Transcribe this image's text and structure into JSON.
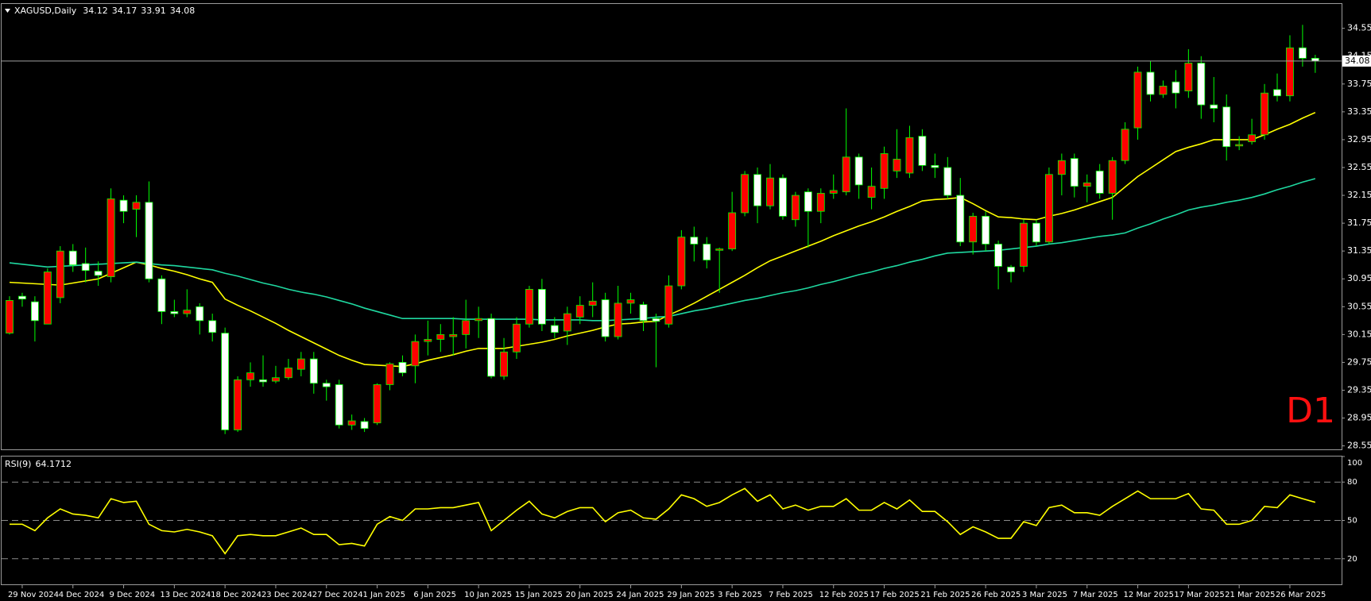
{
  "chart_data": [
    {
      "type": "candlestick",
      "symbol": "XAGUSD,Daily",
      "annotation": "D1",
      "up_color": "#ff0000",
      "down_color": "#ffffff",
      "wick_color": "#00ff00",
      "categories": [
        null,
        "29 Nov 2024",
        null,
        null,
        null,
        "4 Dec 2024",
        null,
        null,
        null,
        "9 Dec 2024",
        null,
        null,
        null,
        "13 Dec 2024",
        null,
        null,
        null,
        "18 Dec 2024",
        null,
        null,
        null,
        "23 Dec 2024",
        null,
        null,
        null,
        "27 Dec 2024",
        null,
        null,
        null,
        "1 Jan 2025",
        null,
        null,
        null,
        "6 Jan 2025",
        null,
        null,
        null,
        "10 Jan 2025",
        null,
        null,
        null,
        "15 Jan 2025",
        null,
        null,
        null,
        "20 Jan 2025",
        null,
        null,
        null,
        "24 Jan 2025",
        null,
        null,
        null,
        "29 Jan 2025",
        null,
        null,
        null,
        "3 Feb 2025",
        null,
        null,
        null,
        "7 Feb 2025",
        null,
        null,
        null,
        "12 Feb 2025",
        null,
        null,
        null,
        "17 Feb 2025",
        null,
        null,
        null,
        "21 Feb 2025",
        null,
        null,
        null,
        "26 Feb 2025",
        null,
        null,
        null,
        "3 Mar 2025",
        null,
        null,
        null,
        "7 Mar 2025",
        null,
        null,
        null,
        "12 Mar 2025",
        null,
        null,
        null,
        "17 Mar 2025",
        null,
        null,
        null,
        "21 Mar 2025",
        null,
        null,
        null,
        "26 Mar 2025",
        null,
        null
      ],
      "open": [
        30.17,
        30.7,
        30.62,
        30.3,
        30.68,
        31.35,
        31.17,
        31.06,
        30.98,
        32.08,
        31.95,
        32.05,
        30.95,
        30.48,
        30.45,
        30.55,
        30.35,
        30.17,
        28.78,
        29.5,
        29.5,
        29.48,
        29.53,
        29.65,
        29.8,
        29.45,
        29.43,
        28.85,
        28.9,
        28.88,
        29.43,
        29.75,
        29.7,
        30.05,
        30.08,
        30.12,
        30.15,
        30.35,
        30.38,
        29.55,
        29.9,
        30.3,
        30.8,
        30.28,
        30.2,
        30.4,
        30.57,
        30.65,
        30.12,
        30.6,
        30.58,
        30.38,
        30.3,
        30.85,
        31.55,
        31.45,
        31.36,
        31.38,
        31.9,
        32.45,
        32.0,
        32.4,
        31.8,
        32.2,
        31.92,
        32.18,
        32.2,
        32.7,
        32.12,
        32.25,
        32.5,
        32.47,
        33.0,
        32.58,
        32.55,
        32.15,
        31.48,
        31.85,
        31.45,
        31.12,
        31.13,
        31.75,
        31.48,
        32.45,
        32.68,
        32.28,
        32.5,
        32.18,
        32.65,
        33.12,
        33.92,
        33.6,
        33.78,
        33.65,
        34.05,
        33.45,
        33.42,
        32.86,
        32.92,
        33.02,
        33.67,
        33.58,
        34.27,
        34.12
      ],
      "high": [
        30.7,
        30.75,
        30.7,
        31.1,
        31.42,
        31.45,
        31.4,
        31.2,
        32.25,
        32.15,
        32.15,
        32.35,
        31.0,
        30.65,
        30.8,
        30.6,
        30.45,
        30.25,
        29.55,
        29.75,
        29.85,
        29.7,
        29.8,
        29.9,
        29.9,
        29.5,
        29.5,
        29.0,
        28.95,
        29.45,
        29.75,
        29.85,
        30.15,
        30.35,
        30.3,
        30.4,
        30.65,
        30.55,
        30.45,
        30.1,
        30.4,
        30.85,
        30.95,
        30.4,
        30.55,
        30.7,
        30.9,
        30.75,
        30.85,
        30.75,
        30.62,
        30.45,
        31.0,
        31.65,
        31.7,
        31.55,
        31.4,
        32.2,
        32.5,
        32.55,
        32.6,
        32.45,
        32.2,
        32.25,
        32.25,
        32.45,
        33.4,
        32.75,
        32.55,
        32.85,
        33.1,
        33.15,
        33.1,
        32.75,
        32.7,
        32.4,
        31.9,
        31.92,
        31.5,
        31.15,
        31.8,
        31.8,
        32.55,
        32.75,
        32.75,
        32.45,
        32.6,
        32.7,
        33.2,
        34.0,
        34.08,
        33.8,
        33.95,
        34.25,
        34.15,
        33.85,
        33.6,
        33.0,
        33.25,
        33.75,
        33.9,
        34.45,
        34.6,
        34.17
      ],
      "low": [
        30.15,
        30.55,
        30.05,
        30.3,
        30.6,
        31.05,
        30.9,
        30.85,
        30.9,
        31.75,
        31.55,
        30.9,
        30.3,
        30.4,
        30.4,
        30.15,
        30.05,
        28.72,
        28.75,
        29.4,
        29.4,
        29.45,
        29.5,
        29.55,
        29.3,
        29.2,
        28.8,
        28.78,
        28.75,
        28.85,
        29.35,
        29.55,
        29.45,
        29.85,
        29.9,
        29.85,
        29.95,
        30.1,
        29.52,
        29.5,
        29.8,
        30.25,
        30.2,
        30.1,
        30.0,
        30.3,
        30.4,
        30.05,
        30.08,
        30.45,
        30.2,
        29.68,
        30.25,
        30.8,
        31.2,
        31.1,
        30.75,
        31.35,
        31.85,
        31.75,
        31.95,
        31.8,
        31.7,
        31.4,
        31.75,
        32.1,
        32.15,
        32.1,
        31.95,
        32.1,
        32.4,
        32.4,
        32.5,
        32.4,
        32.1,
        31.42,
        31.3,
        31.35,
        30.8,
        30.9,
        31.05,
        31.42,
        31.45,
        32.15,
        32.12,
        32.05,
        32.1,
        31.8,
        32.6,
        32.95,
        33.5,
        33.55,
        33.4,
        33.55,
        33.25,
        33.2,
        32.65,
        32.8,
        32.88,
        32.95,
        33.5,
        33.5,
        34.0,
        33.91
      ],
      "close": [
        30.64,
        30.66,
        30.35,
        31.05,
        31.35,
        31.15,
        31.07,
        31.0,
        32.1,
        31.92,
        32.05,
        30.95,
        30.48,
        30.45,
        30.5,
        30.35,
        30.18,
        28.78,
        29.5,
        29.6,
        29.47,
        29.53,
        29.67,
        29.8,
        29.45,
        29.4,
        28.85,
        28.91,
        28.8,
        29.43,
        29.73,
        29.6,
        30.05,
        30.08,
        30.15,
        30.15,
        30.35,
        30.38,
        29.55,
        29.9,
        30.3,
        30.8,
        30.3,
        30.18,
        30.45,
        30.57,
        30.63,
        30.12,
        30.6,
        30.65,
        30.35,
        30.34,
        30.85,
        31.55,
        31.45,
        31.22,
        31.38,
        31.9,
        32.45,
        32.0,
        32.4,
        31.85,
        32.15,
        31.92,
        32.18,
        32.22,
        32.7,
        32.3,
        32.28,
        32.75,
        32.67,
        32.98,
        32.58,
        32.55,
        32.15,
        31.48,
        31.85,
        31.45,
        31.13,
        31.05,
        31.75,
        31.48,
        32.45,
        32.65,
        32.28,
        32.33,
        32.18,
        32.65,
        33.1,
        33.92,
        33.6,
        33.72,
        33.62,
        34.05,
        33.45,
        33.4,
        32.85,
        32.88,
        33.02,
        33.62,
        33.58,
        34.27,
        34.12,
        34.08
      ],
      "series": [
        {
          "color": "#ffff00",
          "values": [
            30.9,
            30.89,
            30.88,
            30.87,
            30.86,
            30.89,
            30.92,
            30.95,
            31.03,
            31.11,
            31.19,
            31.15,
            31.1,
            31.06,
            31.01,
            30.95,
            30.9,
            30.66,
            30.57,
            30.49,
            30.4,
            30.31,
            30.21,
            30.12,
            30.03,
            29.94,
            29.85,
            29.78,
            29.72,
            29.71,
            29.7,
            29.69,
            29.73,
            29.78,
            29.82,
            29.86,
            29.91,
            29.95,
            29.95,
            29.95,
            29.98,
            30.01,
            30.04,
            30.08,
            30.13,
            30.17,
            30.21,
            30.26,
            30.3,
            30.31,
            30.33,
            30.34,
            30.43,
            30.51,
            30.6,
            30.7,
            30.8,
            30.9,
            31.0,
            31.11,
            31.21,
            31.28,
            31.35,
            31.42,
            31.49,
            31.57,
            31.64,
            31.71,
            31.77,
            31.84,
            31.92,
            31.99,
            32.07,
            32.09,
            32.1,
            32.12,
            32.03,
            31.93,
            31.84,
            31.83,
            31.81,
            31.8,
            31.85,
            31.89,
            31.94,
            32.0,
            32.06,
            32.12,
            32.27,
            32.42,
            32.54,
            32.66,
            32.78,
            32.84,
            32.89,
            32.95,
            32.95,
            32.95,
            32.95,
            33.02,
            33.1,
            33.17,
            33.26,
            33.34
          ]
        },
        {
          "color": "#1fd8a0",
          "values": [
            31.18,
            31.16,
            31.14,
            31.12,
            31.13,
            31.14,
            31.15,
            31.16,
            31.17,
            31.18,
            31.19,
            31.17,
            31.15,
            31.14,
            31.12,
            31.1,
            31.08,
            31.03,
            30.99,
            30.94,
            30.89,
            30.85,
            30.8,
            30.76,
            30.73,
            30.69,
            30.64,
            30.59,
            30.53,
            30.48,
            30.43,
            30.38,
            30.38,
            30.38,
            30.38,
            30.38,
            30.37,
            30.37,
            30.37,
            30.37,
            30.37,
            30.37,
            30.36,
            30.36,
            30.36,
            30.36,
            30.35,
            30.35,
            30.36,
            30.37,
            30.38,
            30.4,
            30.41,
            30.45,
            30.49,
            30.52,
            30.56,
            30.6,
            30.64,
            30.67,
            30.71,
            30.75,
            30.78,
            30.82,
            30.87,
            30.91,
            30.96,
            31.01,
            31.05,
            31.1,
            31.14,
            31.19,
            31.23,
            31.28,
            31.32,
            31.33,
            31.34,
            31.35,
            31.36,
            31.38,
            31.4,
            31.42,
            31.45,
            31.47,
            31.5,
            31.53,
            31.56,
            31.58,
            31.61,
            31.68,
            31.74,
            31.81,
            31.87,
            31.94,
            31.98,
            32.01,
            32.05,
            32.08,
            32.12,
            32.17,
            32.23,
            32.28,
            32.34,
            32.39
          ]
        }
      ],
      "ylim": [
        28.5,
        34.9
      ],
      "yticks": [
        {
          "value": 28.55,
          "label": "28.55"
        },
        {
          "value": 28.95,
          "label": "28.95"
        },
        {
          "value": 29.35,
          "label": "29.35"
        },
        {
          "value": 29.75,
          "label": "29.75"
        },
        {
          "value": 30.15,
          "label": "30.15"
        },
        {
          "value": 30.55,
          "label": "30.55"
        },
        {
          "value": 30.95,
          "label": "30.95"
        },
        {
          "value": 31.35,
          "label": "31.35"
        },
        {
          "value": 31.75,
          "label": "31.75"
        },
        {
          "value": 32.15,
          "label": "32.15"
        },
        {
          "value": 32.55,
          "label": "32.55"
        },
        {
          "value": 32.95,
          "label": "32.95"
        },
        {
          "value": 33.35,
          "label": "33.35"
        },
        {
          "value": 33.75,
          "label": "33.75"
        },
        {
          "value": 34.15,
          "label": "34.15"
        },
        {
          "value": 34.55,
          "label": "34.55"
        }
      ]
    },
    {
      "type": "line",
      "title": "RSI(9)",
      "series": [
        {
          "color": "#ffff00",
          "values": [
            47,
            47,
            42,
            52,
            59,
            55,
            54,
            52,
            67,
            64,
            65,
            47,
            42,
            41,
            43,
            41,
            38,
            24,
            38,
            39,
            38,
            38,
            41,
            44,
            39,
            39,
            31,
            32,
            30,
            47,
            53,
            50,
            59,
            59,
            60,
            60,
            62,
            64,
            42,
            50,
            58,
            65,
            55,
            52,
            57,
            60,
            60,
            49,
            56,
            58,
            52,
            51,
            59,
            70,
            67,
            61,
            64,
            70,
            75,
            65,
            70,
            59,
            62,
            58,
            61,
            61,
            67,
            58,
            58,
            64,
            59,
            66,
            57,
            57,
            49,
            39,
            45,
            41,
            36,
            36,
            49,
            46,
            60,
            62,
            56,
            56,
            54,
            61,
            67,
            73,
            67,
            67,
            67,
            71,
            59,
            58,
            47,
            47,
            50,
            61,
            60,
            70,
            67,
            64.1712
          ]
        }
      ],
      "ylim": [
        0,
        100
      ],
      "yticks": [
        20,
        50,
        80,
        100
      ]
    }
  ]
}
